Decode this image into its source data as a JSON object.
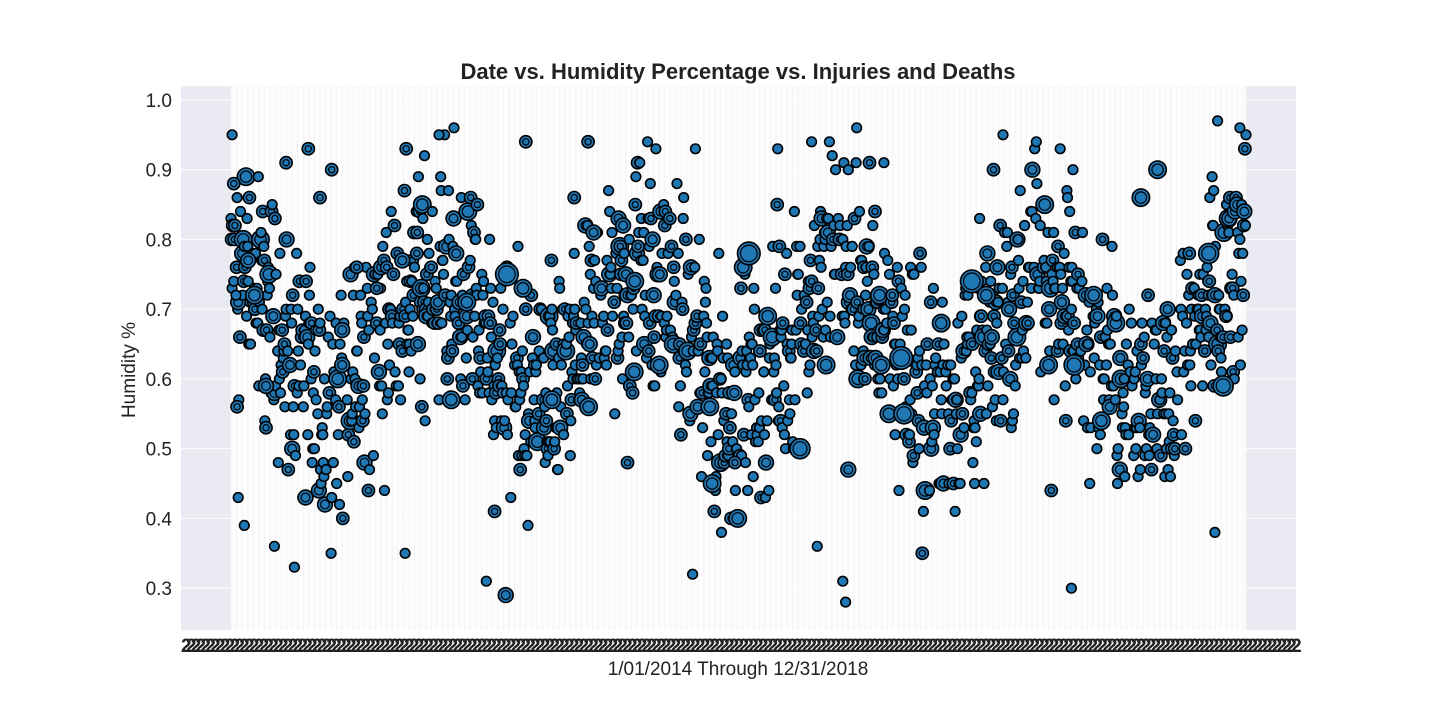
{
  "chart_data": {
    "type": "scatter",
    "title": "Date vs. Humidity Percentage vs. Injuries and Deaths",
    "xlabel": "1/01/2014 Through 12/31/2018",
    "ylabel": "Humidity %",
    "x_start": "2014-01-01",
    "x_end": "2018-12-31",
    "ylim": [
      0.24,
      1.02
    ],
    "yticks": [
      "0.3",
      "0.4",
      "0.5",
      "0.6",
      "0.7",
      "0.8",
      "0.9",
      "1.0"
    ],
    "grid": true,
    "x_tick_labels_overlapping": true,
    "colors": {
      "background": "#eaeaf2",
      "marker_fill": "#1f77b4",
      "marker_edge": "#000000",
      "grid": "#ffffff"
    },
    "sampled_points": [
      {
        "x": "2014-01-03",
        "y": 0.95,
        "s": 1
      },
      {
        "x": "2014-01-06",
        "y": 0.88,
        "s": 2
      },
      {
        "x": "2014-01-08",
        "y": 0.82,
        "s": 2
      },
      {
        "x": "2014-01-10",
        "y": 0.72,
        "s": 1
      },
      {
        "x": "2014-01-12",
        "y": 0.56,
        "s": 2
      },
      {
        "x": "2014-01-14",
        "y": 0.43,
        "s": 1
      },
      {
        "x": "2014-01-25",
        "y": 0.39,
        "s": 1
      },
      {
        "x": "2014-02-01",
        "y": 0.77,
        "s": 3
      },
      {
        "x": "2014-02-12",
        "y": 0.72,
        "s": 4
      },
      {
        "x": "2014-03-05",
        "y": 0.59,
        "s": 3
      },
      {
        "x": "2014-03-20",
        "y": 0.36,
        "s": 1
      },
      {
        "x": "2014-04-10",
        "y": 0.91,
        "s": 2
      },
      {
        "x": "2014-04-25",
        "y": 0.33,
        "s": 1
      },
      {
        "x": "2014-05-15",
        "y": 0.43,
        "s": 3
      },
      {
        "x": "2014-05-20",
        "y": 0.93,
        "s": 2
      },
      {
        "x": "2014-06-10",
        "y": 0.86,
        "s": 2
      },
      {
        "x": "2014-07-01",
        "y": 0.9,
        "s": 2
      },
      {
        "x": "2014-07-20",
        "y": 0.67,
        "s": 3
      },
      {
        "x": "2014-08-15",
        "y": 0.76,
        "s": 2
      },
      {
        "x": "2014-09-20",
        "y": 0.73,
        "s": 2
      },
      {
        "x": "2014-11-05",
        "y": 0.77,
        "s": 3
      },
      {
        "x": "2014-11-10",
        "y": 0.35,
        "s": 1
      },
      {
        "x": "2014-12-10",
        "y": 0.56,
        "s": 2
      },
      {
        "x": "2015-01-10",
        "y": 0.95,
        "s": 1
      },
      {
        "x": "2015-02-01",
        "y": 0.57,
        "s": 4
      },
      {
        "x": "2015-03-01",
        "y": 0.71,
        "s": 4
      },
      {
        "x": "2015-04-05",
        "y": 0.31,
        "s": 1
      },
      {
        "x": "2015-04-20",
        "y": 0.41,
        "s": 2
      },
      {
        "x": "2015-05-10",
        "y": 0.29,
        "s": 3
      },
      {
        "x": "2015-05-12",
        "y": 0.75,
        "s": 6
      },
      {
        "x": "2015-06-10",
        "y": 0.73,
        "s": 4
      },
      {
        "x": "2015-06-15",
        "y": 0.94,
        "s": 2
      },
      {
        "x": "2015-08-01",
        "y": 0.57,
        "s": 4
      },
      {
        "x": "2015-09-10",
        "y": 0.86,
        "s": 2
      },
      {
        "x": "2015-10-05",
        "y": 0.94,
        "s": 2
      },
      {
        "x": "2015-10-15",
        "y": 0.81,
        "s": 3
      },
      {
        "x": "2015-12-15",
        "y": 0.48,
        "s": 2
      },
      {
        "x": "2016-01-20",
        "y": 0.94,
        "s": 1
      },
      {
        "x": "2016-02-10",
        "y": 0.62,
        "s": 4
      },
      {
        "x": "2016-04-10",
        "y": 0.32,
        "s": 1
      },
      {
        "x": "2016-04-15",
        "y": 0.93,
        "s": 1
      },
      {
        "x": "2016-05-15",
        "y": 0.45,
        "s": 4
      },
      {
        "x": "2016-06-25",
        "y": 0.48,
        "s": 2
      },
      {
        "x": "2016-07-10",
        "y": 0.76,
        "s": 4
      },
      {
        "x": "2016-07-20",
        "y": 0.78,
        "s": 6
      },
      {
        "x": "2016-09-10",
        "y": 0.93,
        "s": 1
      },
      {
        "x": "2016-10-20",
        "y": 0.5,
        "s": 5
      },
      {
        "x": "2016-11-10",
        "y": 0.94,
        "s": 1
      },
      {
        "x": "2016-11-20",
        "y": 0.36,
        "s": 1
      },
      {
        "x": "2017-01-05",
        "y": 0.31,
        "s": 1
      },
      {
        "x": "2017-01-10",
        "y": 0.28,
        "s": 1
      },
      {
        "x": "2017-01-15",
        "y": 0.47,
        "s": 3
      },
      {
        "x": "2017-03-20",
        "y": 0.91,
        "s": 1
      },
      {
        "x": "2017-04-20",
        "y": 0.63,
        "s": 6
      },
      {
        "x": "2017-04-25",
        "y": 0.55,
        "s": 5
      },
      {
        "x": "2017-07-01",
        "y": 0.68,
        "s": 4
      },
      {
        "x": "2017-08-25",
        "y": 0.74,
        "s": 6
      },
      {
        "x": "2017-09-20",
        "y": 0.72,
        "s": 4
      },
      {
        "x": "2017-10-20",
        "y": 0.95,
        "s": 1
      },
      {
        "x": "2018-01-10",
        "y": 0.62,
        "s": 4
      },
      {
        "x": "2018-01-15",
        "y": 0.44,
        "s": 2
      },
      {
        "x": "2018-02-20",
        "y": 0.3,
        "s": 1
      },
      {
        "x": "2018-02-25",
        "y": 0.62,
        "s": 5
      },
      {
        "x": "2018-04-01",
        "y": 0.72,
        "s": 4
      },
      {
        "x": "2018-04-15",
        "y": 0.54,
        "s": 4
      },
      {
        "x": "2018-06-25",
        "y": 0.86,
        "s": 4
      },
      {
        "x": "2018-07-25",
        "y": 0.9,
        "s": 4
      },
      {
        "x": "2018-10-25",
        "y": 0.78,
        "s": 5
      },
      {
        "x": "2018-11-05",
        "y": 0.38,
        "s": 1
      },
      {
        "x": "2018-11-10",
        "y": 0.97,
        "s": 1
      },
      {
        "x": "2018-11-20",
        "y": 0.59,
        "s": 5
      },
      {
        "x": "2018-12-20",
        "y": 0.96,
        "s": 1
      },
      {
        "x": "2018-12-29",
        "y": 0.93,
        "s": 2
      }
    ]
  }
}
